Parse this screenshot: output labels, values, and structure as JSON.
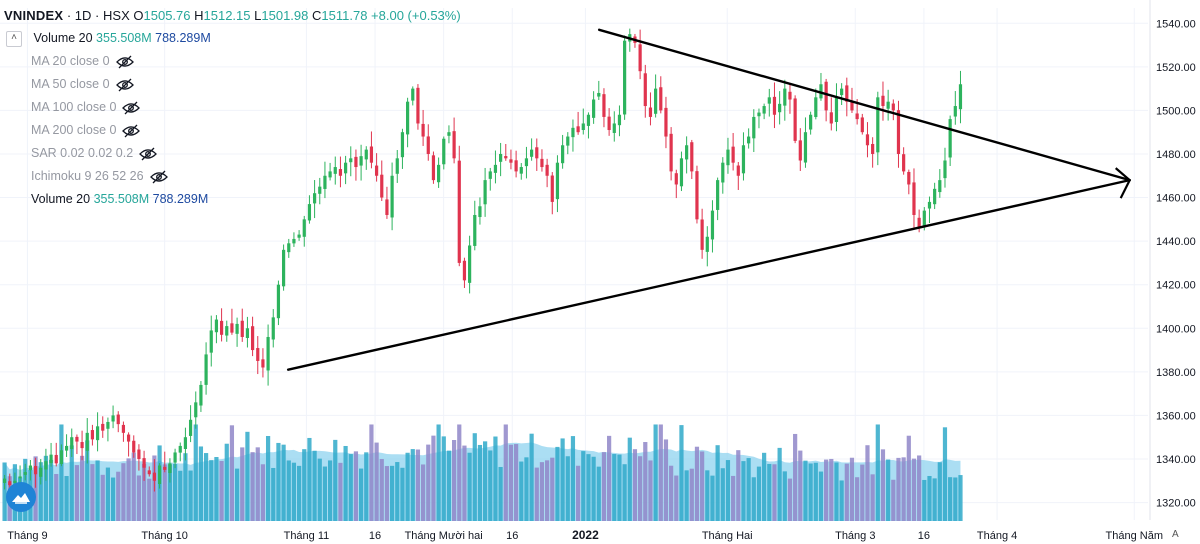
{
  "header": {
    "symbol": "VNINDEX",
    "sep": "·",
    "interval": "1D",
    "exchange": "HSX",
    "o_key": "O",
    "o_val": "1505.76",
    "h_key": "H",
    "h_val": "1512.15",
    "l_key": "L",
    "l_val": "1501.98",
    "c_key": "C",
    "c_val": "1511.78",
    "change": "+8.00 (+0.53%)"
  },
  "volume_row": {
    "name": "Volume 20",
    "v1": "355.508M",
    "v2": "788.289M",
    "collapse_glyph": "˄"
  },
  "indicators": [
    {
      "label": "MA 20 close 0",
      "icon": "hidden-eye-icon"
    },
    {
      "label": "MA 50 close 0",
      "icon": "hidden-eye-icon"
    },
    {
      "label": "MA 100 close 0",
      "icon": "hidden-eye-icon"
    },
    {
      "label": "MA 200 close 0",
      "icon": "hidden-eye-icon"
    },
    {
      "label": "SAR 0.02 0.02 0.2",
      "icon": "hidden-eye-icon"
    },
    {
      "label": "Ichimoku 9 26 52 26",
      "icon": "hidden-eye-icon"
    }
  ],
  "volume_row2": {
    "name": "Volume 20",
    "v1": "355.508M",
    "v2": "788.289M"
  },
  "logo_icon": "tradingview-mountain-icon",
  "auto_scale_label": "A",
  "colors": {
    "up": "#26a69a",
    "up_candle": "#2db35d",
    "down": "#e0344e",
    "volume_up": "#2fa9c9",
    "volume_down": "#8f86c8",
    "volume_ma_fill": "#8fd3ef",
    "trendline": "#000000"
  },
  "chart_data": {
    "type": "candlestick",
    "symbol": "VNINDEX",
    "y_ticks": [
      1320,
      1340,
      1360,
      1380,
      1400,
      1420,
      1440,
      1460,
      1480,
      1500,
      1520,
      1540
    ],
    "y_tick_labels": [
      "1320.00",
      "1340.00",
      "1360.00",
      "1380.00",
      "1400.00",
      "1420.00",
      "1440.00",
      "1460.00",
      "1480.00",
      "1500.00",
      "1520.00",
      "1540.00"
    ],
    "ylim": [
      1312,
      1547
    ],
    "x_tick_labels": [
      {
        "label": "Tháng 9",
        "date": "2021-09-01",
        "bold": false
      },
      {
        "label": "Tháng 10",
        "date": "2021-10-01",
        "bold": false
      },
      {
        "label": "Tháng 11",
        "date": "2021-11-01",
        "bold": false
      },
      {
        "label": "16",
        "date": "2021-11-16",
        "bold": false
      },
      {
        "label": "Tháng Mười hai",
        "date": "2021-12-01",
        "bold": false
      },
      {
        "label": "16",
        "date": "2021-12-16",
        "bold": false
      },
      {
        "label": "2022",
        "date": "2022-01-01",
        "bold": true
      },
      {
        "label": "Tháng Hai",
        "date": "2022-02-01",
        "bold": false
      },
      {
        "label": "Tháng 3",
        "date": "2022-03-01",
        "bold": false
      },
      {
        "label": "16",
        "date": "2022-03-16",
        "bold": false
      },
      {
        "label": "Tháng 4",
        "date": "2022-04-01",
        "bold": false
      },
      {
        "label": "Tháng Năm",
        "date": "2022-05-01",
        "bold": false
      }
    ],
    "xlim": [
      "2021-08-26",
      "2022-05-04"
    ],
    "candles": {
      "x_start": "2021-08-27",
      "x_end": "2022-03-24",
      "closes": [
        1331,
        1328,
        1330,
        1332,
        1334,
        1337,
        1333,
        1336,
        1339,
        1342,
        1338,
        1344,
        1346,
        1350,
        1348,
        1345,
        1352,
        1349,
        1355,
        1353,
        1357,
        1360,
        1356,
        1352,
        1348,
        1343,
        1340,
        1336,
        1333,
        1330,
        1337,
        1335,
        1338,
        1343,
        1346,
        1350,
        1358,
        1366,
        1374,
        1388,
        1399,
        1404,
        1397,
        1401,
        1398,
        1402,
        1396,
        1400,
        1390,
        1385,
        1382,
        1396,
        1405,
        1420,
        1436,
        1439,
        1441,
        1443,
        1450,
        1457,
        1462,
        1465,
        1470,
        1472,
        1474,
        1470,
        1476,
        1478,
        1474,
        1479,
        1482,
        1476,
        1470,
        1460,
        1452,
        1470,
        1478,
        1490,
        1504,
        1510,
        1494,
        1488,
        1480,
        1468,
        1475,
        1487,
        1490,
        1478,
        1430,
        1422,
        1438,
        1452,
        1456,
        1468,
        1472,
        1475,
        1480,
        1478,
        1476,
        1472,
        1474,
        1478,
        1482,
        1478,
        1474,
        1470,
        1458,
        1476,
        1484,
        1488,
        1492,
        1490,
        1494,
        1498,
        1505,
        1508,
        1497,
        1491,
        1494,
        1498,
        1532,
        1535,
        1531,
        1518,
        1502,
        1497,
        1510,
        1500,
        1488,
        1472,
        1466,
        1478,
        1484,
        1472,
        1450,
        1436,
        1442,
        1454,
        1468,
        1476,
        1482,
        1476,
        1470,
        1484,
        1488,
        1497,
        1499,
        1502,
        1506,
        1498,
        1503,
        1510,
        1505,
        1486,
        1477,
        1490,
        1498,
        1506,
        1512,
        1500,
        1494,
        1506,
        1510,
        1504,
        1500,
        1496,
        1490,
        1484,
        1480,
        1506,
        1502,
        1504,
        1500,
        1480,
        1472,
        1466,
        1452,
        1446,
        1454,
        1458,
        1464,
        1468,
        1477,
        1496,
        1502,
        1512
      ]
    },
    "volume": {
      "unit": "shares",
      "ma_period": 20,
      "last_value": "355.508M",
      "last_ma": "788.289M"
    },
    "trendlines": [
      {
        "name": "upper",
        "from": {
          "date": "2022-01-04",
          "price": 1537
        },
        "to": {
          "date": "2022-04-30",
          "price": 1468
        }
      },
      {
        "name": "lower",
        "from": {
          "date": "2021-10-28",
          "price": 1381
        },
        "to": {
          "date": "2022-04-30",
          "price": 1468
        }
      }
    ]
  }
}
